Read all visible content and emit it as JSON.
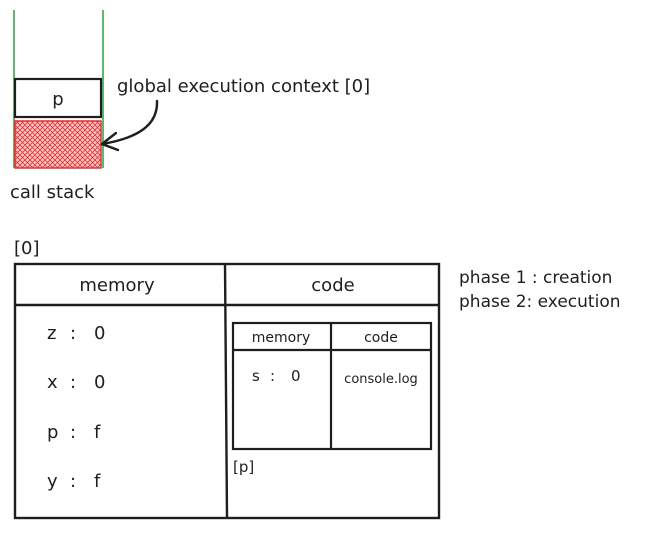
{
  "colors": {
    "ink": "#1e1e1e",
    "stack_wall": "#2f9e44",
    "global_frame_fill": "#ffc9c9",
    "global_frame_hatch": "#e03131",
    "background": "#ffffff"
  },
  "call_stack": {
    "frame_top_label": "p",
    "annotation": "global execution context [0]",
    "caption": "call stack"
  },
  "global_context": {
    "tag": "[0]",
    "memory_header": "memory",
    "code_header": "code",
    "memory_entries": [
      {
        "name": "z",
        "sep": ":",
        "value": "0"
      },
      {
        "name": "x",
        "sep": ":",
        "value": "0"
      },
      {
        "name": "p",
        "sep": ":",
        "value": "f"
      },
      {
        "name": "y",
        "sep": ":",
        "value": "f"
      }
    ]
  },
  "inner_context": {
    "memory_header": "memory",
    "code_header": "code",
    "memory_entry": {
      "name": "s",
      "sep": ":",
      "value": "0"
    },
    "code_entry": "console.log",
    "tag": "[p]"
  },
  "phases": {
    "line1": "phase 1 : creation",
    "line2": "phase 2: execution"
  }
}
